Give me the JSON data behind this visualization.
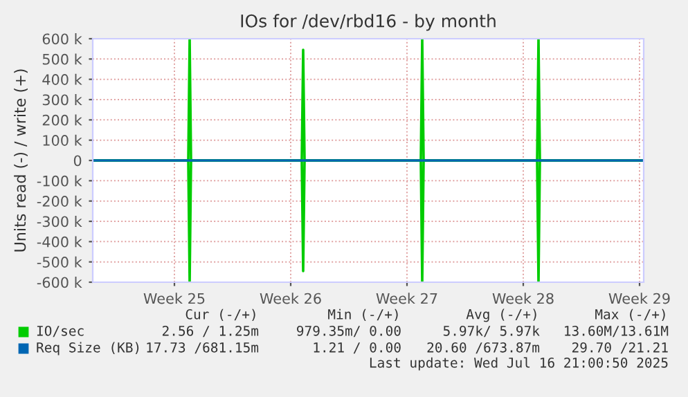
{
  "chart_data": {
    "type": "line",
    "title": "IOs for /dev/rbd16 - by month",
    "ylabel": "Units read (-) / write (+)",
    "xlim": [
      "2025-06-13T17:00",
      "2025-07-16T21:00"
    ],
    "xticks": [
      {
        "value": "2025-06-18T15:00",
        "label": "Week 25"
      },
      {
        "value": "2025-06-25T15:00",
        "label": "Week 26"
      },
      {
        "value": "2025-07-02T15:00",
        "label": "Week 27"
      },
      {
        "value": "2025-07-09T15:00",
        "label": "Week 28"
      },
      {
        "value": "2025-07-16T15:00",
        "label": "Week 29"
      }
    ],
    "ylim": [
      -600000,
      600000
    ],
    "yticks": [
      {
        "value": -600000,
        "label": "-600 k"
      },
      {
        "value": -500000,
        "label": "-500 k"
      },
      {
        "value": -400000,
        "label": "-400 k"
      },
      {
        "value": -300000,
        "label": "-300 k"
      },
      {
        "value": -200000,
        "label": "-200 k"
      },
      {
        "value": -100000,
        "label": "-100 k"
      },
      {
        "value": 0,
        "label": "0"
      },
      {
        "value": 100000,
        "label": "100 k"
      },
      {
        "value": 200000,
        "label": "200 k"
      },
      {
        "value": 300000,
        "label": "300 k"
      },
      {
        "value": 400000,
        "label": "400 k"
      },
      {
        "value": 500000,
        "label": "500 k"
      },
      {
        "value": 600000,
        "label": "600 k"
      }
    ],
    "series": [
      {
        "name": "IO/sec",
        "color": "#00cc00",
        "x": [
          "2025-06-13T17:00",
          "2025-06-19T11:00",
          "2025-06-19T13:00",
          "2025-06-19T15:00",
          "2025-06-26T07:00",
          "2025-06-26T09:00",
          "2025-06-26T11:00",
          "2025-07-03T11:00",
          "2025-07-03T13:00",
          "2025-07-03T15:00",
          "2025-07-10T11:00",
          "2025-07-10T13:00",
          "2025-07-10T15:00",
          "2025-07-16T21:00"
        ],
        "values": [
          0,
          0,
          600000,
          0,
          0,
          545000,
          0,
          0,
          600000,
          0,
          0,
          600000,
          0,
          0
        ]
      },
      {
        "color": "#00cc00",
        "x": [
          "2025-06-13T17:00",
          "2025-06-19T11:00",
          "2025-06-19T13:00",
          "2025-06-19T15:00",
          "2025-06-26T07:00",
          "2025-06-26T09:00",
          "2025-06-26T11:00",
          "2025-07-03T11:00",
          "2025-07-03T13:00",
          "2025-07-03T15:00",
          "2025-07-10T11:00",
          "2025-07-10T13:00",
          "2025-07-10T15:00",
          "2025-07-16T21:00"
        ],
        "values": [
          0,
          0,
          -600000,
          0,
          0,
          -545000,
          0,
          0,
          -600000,
          0,
          0,
          -600000,
          0,
          0
        ]
      },
      {
        "name": "Req Size (KB)",
        "color": "#0066b3",
        "x": [
          "2025-06-13T17:00",
          "2025-07-16T21:00"
        ],
        "values": [
          0,
          0
        ]
      }
    ],
    "grid": true,
    "legend": "bottom",
    "marker": "none",
    "line_style": "solid",
    "annotations": [
      "Cur (-/+)",
      "Min (-/+)",
      "Avg (-/+)",
      "Max (-/+)",
      "2.56 / 1.25m",
      "979.35m/ 0.00",
      "5.97k/ 5.97k",
      "13.60M/13.61M",
      "17.73 /681.15m",
      "1.21 / 0.00",
      "20.60 /673.87m",
      "29.70 /21.21",
      "Last update: Wed Jul 16 21:00:50 2025"
    ]
  }
}
